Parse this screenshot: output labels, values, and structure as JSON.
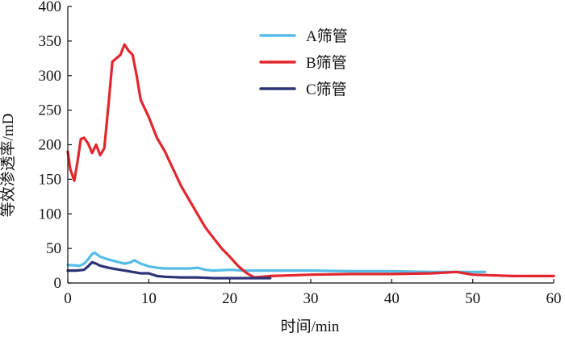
{
  "chart_data": {
    "type": "line",
    "title": "",
    "xlabel": "时间/min",
    "ylabel": "等效渗透率/mD",
    "xlim": [
      0,
      60
    ],
    "ylim": [
      0,
      400
    ],
    "xticks": [
      "0",
      "10",
      "20",
      "30",
      "40",
      "50",
      "60"
    ],
    "yticks": [
      "0",
      "50",
      "100",
      "150",
      "200",
      "250",
      "300",
      "350",
      "400"
    ],
    "grid": false,
    "legend_position": "top-center",
    "series": [
      {
        "name": "A筛管",
        "color": "#55bde6",
        "x": [
          0,
          1.5,
          2,
          2.5,
          3,
          3.3,
          4,
          5,
          6,
          7,
          7.8,
          8.2,
          9,
          10,
          11,
          12,
          13,
          15,
          16,
          17,
          18,
          20,
          22,
          25,
          30,
          35,
          40,
          45,
          50,
          51.5
        ],
        "y": [
          26,
          25,
          28,
          34,
          42,
          44,
          38,
          34,
          31,
          28,
          30,
          33,
          28,
          24,
          22,
          21,
          21,
          21,
          22,
          19,
          18,
          19,
          18,
          18,
          18,
          17,
          17,
          16,
          16,
          16
        ]
      },
      {
        "name": "B筛管",
        "color": "#e2262d",
        "x": [
          0,
          0.3,
          0.8,
          1.2,
          1.6,
          2,
          2.5,
          3,
          3.5,
          4,
          4.5,
          5,
          5.5,
          6,
          6.5,
          7,
          7.5,
          8,
          8.5,
          9,
          10,
          11,
          12,
          13,
          14,
          15,
          16,
          17,
          18,
          19,
          20,
          21,
          22,
          23,
          24,
          25,
          30,
          35,
          40,
          45,
          48,
          49,
          50,
          55,
          60
        ],
        "y": [
          190,
          165,
          148,
          175,
          208,
          210,
          202,
          188,
          200,
          185,
          195,
          255,
          320,
          325,
          330,
          345,
          336,
          330,
          300,
          265,
          240,
          210,
          190,
          165,
          140,
          120,
          100,
          80,
          65,
          50,
          38,
          25,
          15,
          8,
          9,
          10,
          12,
          13,
          13,
          14,
          16,
          14,
          12,
          10,
          10
        ]
      },
      {
        "name": "C筛管",
        "color": "#2e3478",
        "x": [
          0,
          1,
          2,
          2.5,
          3,
          3.5,
          4,
          5,
          6,
          7,
          8,
          9,
          10,
          11,
          12,
          14,
          16,
          18,
          20,
          22,
          24,
          25
        ],
        "y": [
          18,
          18,
          19,
          24,
          30,
          28,
          25,
          22,
          20,
          18,
          16,
          14,
          14,
          10,
          9,
          8,
          8,
          7,
          7,
          7,
          7,
          7
        ]
      }
    ]
  }
}
